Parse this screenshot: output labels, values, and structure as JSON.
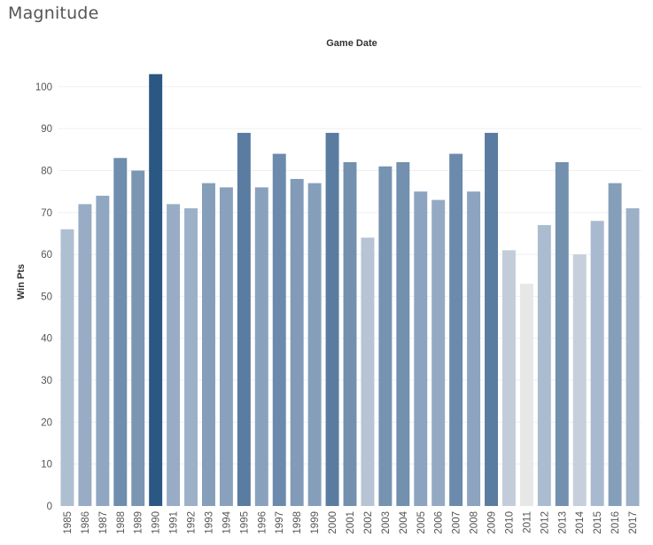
{
  "page_title": "Magnitude",
  "colors": {
    "gradient_low": "#e7e7e7",
    "gradient_mid": "#a9bbd0",
    "gradient_high": "#2b5783",
    "grid": "#efefef",
    "text": "#555555"
  },
  "chart_data": {
    "type": "bar",
    "title": "Game Date",
    "xlabel": "",
    "ylabel": "Win Pts",
    "ylim": [
      0,
      108
    ],
    "yticks": [
      0,
      10,
      20,
      30,
      40,
      50,
      60,
      70,
      80,
      90,
      100
    ],
    "grid": true,
    "color_encoding": "sequential-blue-by-value",
    "categories": [
      "1985",
      "1986",
      "1987",
      "1988",
      "1989",
      "1990",
      "1991",
      "1992",
      "1993",
      "1994",
      "1995",
      "1996",
      "1997",
      "1998",
      "1999",
      "2000",
      "2001",
      "2002",
      "2003",
      "2004",
      "2005",
      "2006",
      "2007",
      "2008",
      "2009",
      "2010",
      "2011",
      "2012",
      "2013",
      "2014",
      "2015",
      "2016",
      "2017"
    ],
    "values": [
      66,
      72,
      74,
      83,
      80,
      103,
      72,
      71,
      77,
      76,
      89,
      76,
      84,
      78,
      77,
      89,
      82,
      64,
      81,
      82,
      75,
      73,
      84,
      75,
      89,
      61,
      53,
      67,
      82,
      60,
      68,
      77,
      71
    ]
  }
}
